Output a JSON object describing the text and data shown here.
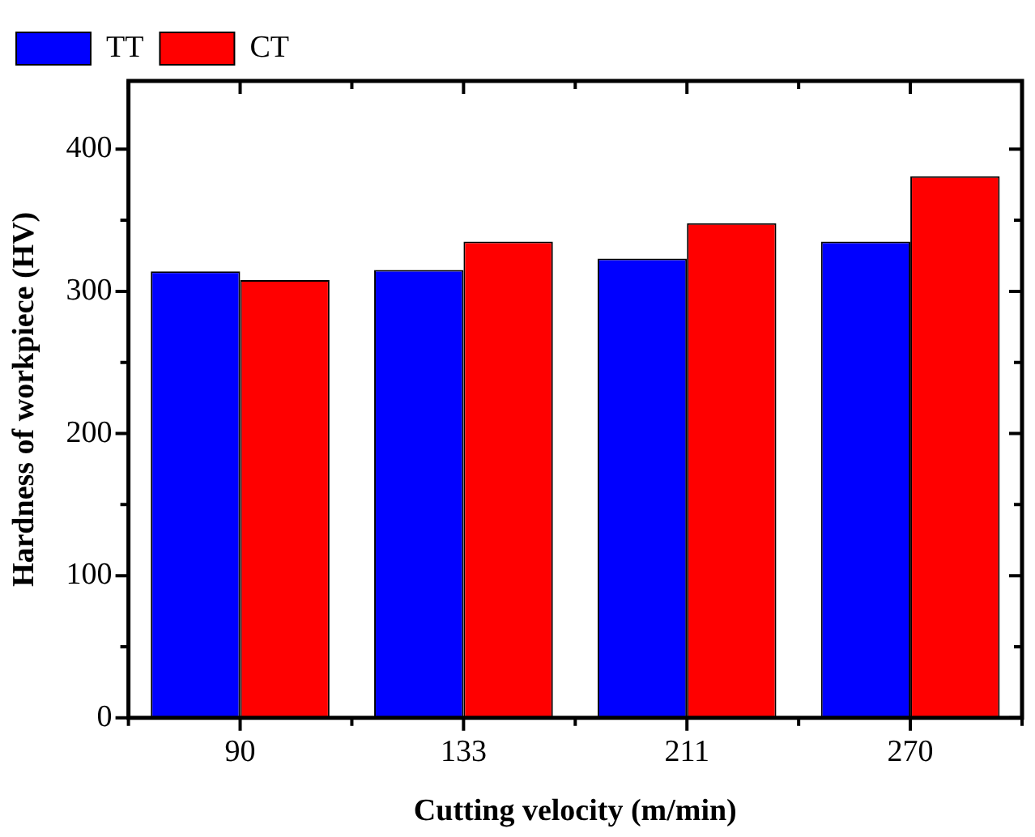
{
  "chart_data": {
    "type": "bar",
    "xlabel": "Cutting velocity (m/min)",
    "ylabel": "Hardness of workpiece (HV)",
    "categories": [
      "90",
      "133",
      "211",
      "270"
    ],
    "series": [
      {
        "name": "TT",
        "color": "#0000ff",
        "values": [
          314,
          315,
          323,
          335
        ]
      },
      {
        "name": "CT",
        "color": "#ff0000",
        "values": [
          308,
          335,
          348,
          381
        ]
      }
    ],
    "ylim": [
      0,
      448
    ],
    "yticks": [
      0,
      100,
      200,
      300,
      400
    ],
    "grid": false,
    "legend": "top left"
  }
}
